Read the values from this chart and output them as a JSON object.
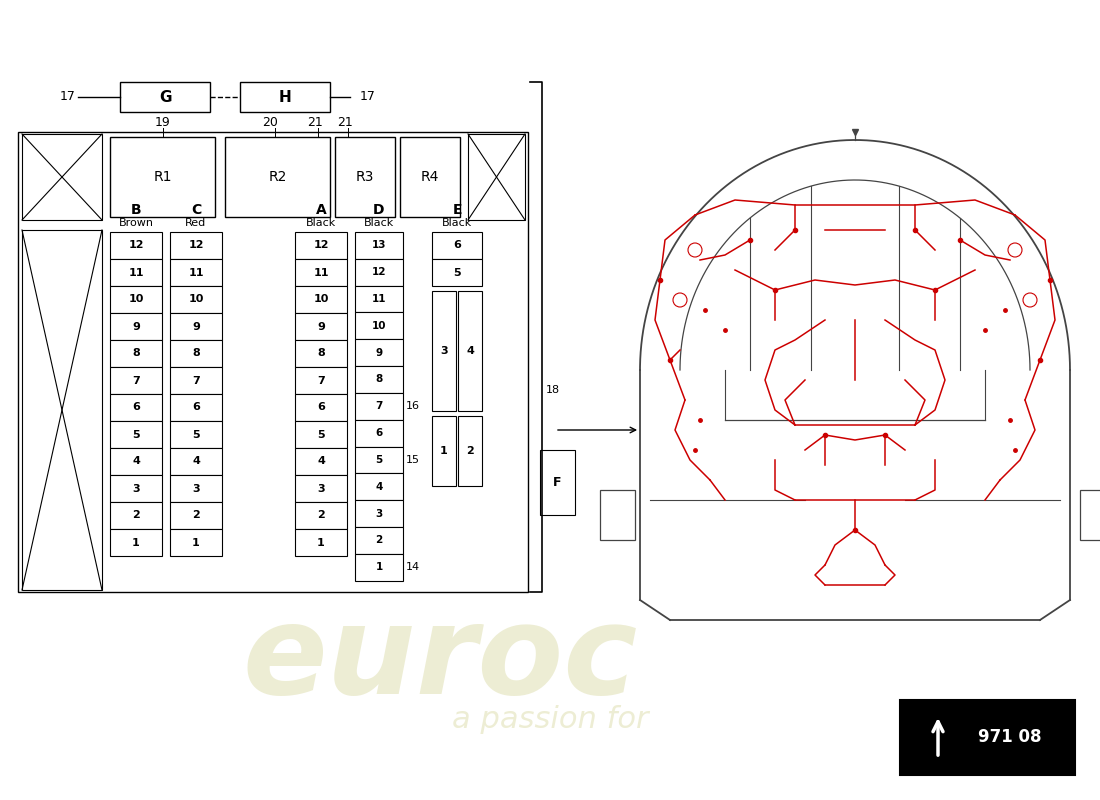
{
  "bg_color": "#ffffff",
  "lc": "#000000",
  "dc": "#cc0000",
  "wc": "#d8d8a0",
  "part_number": "971 08",
  "B_rows": [
    12,
    11,
    10,
    9,
    8,
    7,
    6,
    5,
    4,
    3,
    2,
    1
  ],
  "C_rows": [
    12,
    11,
    10,
    9,
    8,
    7,
    6,
    5,
    4,
    3,
    2,
    1
  ],
  "A_rows": [
    12,
    11,
    10,
    9,
    8,
    7,
    6,
    5,
    4,
    3,
    2,
    1
  ],
  "D_rows": [
    13,
    12,
    11,
    10,
    9,
    8,
    7,
    6,
    5,
    4,
    3,
    2,
    1
  ]
}
